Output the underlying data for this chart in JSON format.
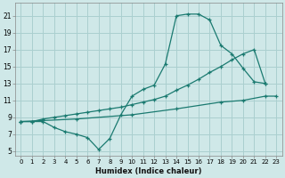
{
  "xlabel": "Humidex (Indice chaleur)",
  "bg_color": "#cfe8e8",
  "grid_color": "#aacfcf",
  "line_color": "#1a7a70",
  "xlim": [
    -0.5,
    23.5
  ],
  "ylim": [
    4.5,
    22.5
  ],
  "xticks": [
    0,
    1,
    2,
    3,
    4,
    5,
    6,
    7,
    8,
    9,
    10,
    11,
    12,
    13,
    14,
    15,
    16,
    17,
    18,
    19,
    20,
    21,
    22,
    23
  ],
  "yticks": [
    5,
    7,
    9,
    11,
    13,
    15,
    17,
    19,
    21
  ],
  "line1_x": [
    0,
    1,
    2,
    3,
    4,
    5,
    6,
    7,
    8,
    9,
    10,
    11,
    12,
    13,
    14,
    15,
    16,
    17,
    18,
    19,
    20,
    21,
    22
  ],
  "line1_y": [
    8.5,
    8.5,
    8.5,
    7.8,
    7.3,
    7.0,
    6.6,
    5.2,
    6.5,
    9.3,
    11.5,
    12.3,
    12.8,
    15.3,
    21.0,
    21.2,
    21.2,
    20.5,
    17.5,
    16.5,
    14.8,
    13.2,
    13.0
  ],
  "line2_x": [
    0,
    1,
    2,
    3,
    4,
    5,
    6,
    7,
    8,
    9,
    10,
    11,
    12,
    13,
    14,
    15,
    16,
    17,
    18,
    19,
    20,
    21,
    22
  ],
  "line2_y": [
    8.5,
    8.5,
    8.8,
    9.0,
    9.2,
    9.4,
    9.6,
    9.8,
    10.0,
    10.2,
    10.5,
    10.8,
    11.1,
    11.5,
    12.2,
    12.8,
    13.5,
    14.3,
    15.0,
    15.8,
    16.5,
    17.0,
    13.0
  ],
  "line3_x": [
    0,
    5,
    10,
    14,
    18,
    20,
    22,
    23
  ],
  "line3_y": [
    8.5,
    8.8,
    9.3,
    10.0,
    10.8,
    11.0,
    11.5,
    11.5
  ]
}
